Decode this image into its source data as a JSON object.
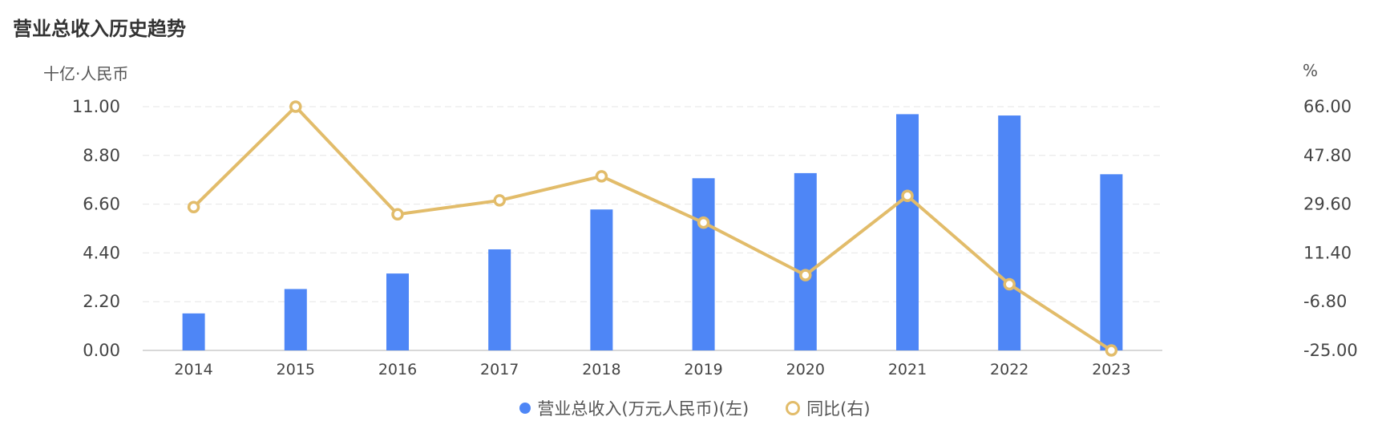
{
  "title": "营业总收入历史趋势",
  "colors": {
    "bar": "#4E86F6",
    "line": "#E2BC6A",
    "grid": "#e6e6e6",
    "axis": "#cccccc"
  },
  "chart_data": {
    "type": "bar",
    "title": "营业总收入历史趋势",
    "categories": [
      "2014",
      "2015",
      "2016",
      "2017",
      "2018",
      "2019",
      "2020",
      "2021",
      "2022",
      "2023"
    ],
    "left_axis": {
      "unit": "十亿·人民币",
      "ylim": [
        0,
        11
      ],
      "ticks": [
        "0.00",
        "2.20",
        "4.40",
        "6.60",
        "8.80",
        "11.00"
      ]
    },
    "right_axis": {
      "unit": "%",
      "ylim": [
        -25,
        66
      ],
      "ticks": [
        "-25.00",
        "-6.80",
        "11.40",
        "29.60",
        "47.80",
        "66.00"
      ]
    },
    "series": [
      {
        "name": "营业总收入(万元人民币)(左)",
        "type": "bar",
        "axis": "left",
        "values": [
          1.67,
          2.77,
          3.47,
          4.56,
          6.36,
          7.77,
          8.0,
          10.66,
          10.6,
          7.95
        ]
      },
      {
        "name": "同比(右)",
        "type": "line",
        "axis": "right",
        "values": [
          28.5,
          66.0,
          25.8,
          31.0,
          40.0,
          22.7,
          3.1,
          32.7,
          -0.3,
          -25.0
        ]
      }
    ],
    "grid": true,
    "legend_position": "bottom-center"
  }
}
